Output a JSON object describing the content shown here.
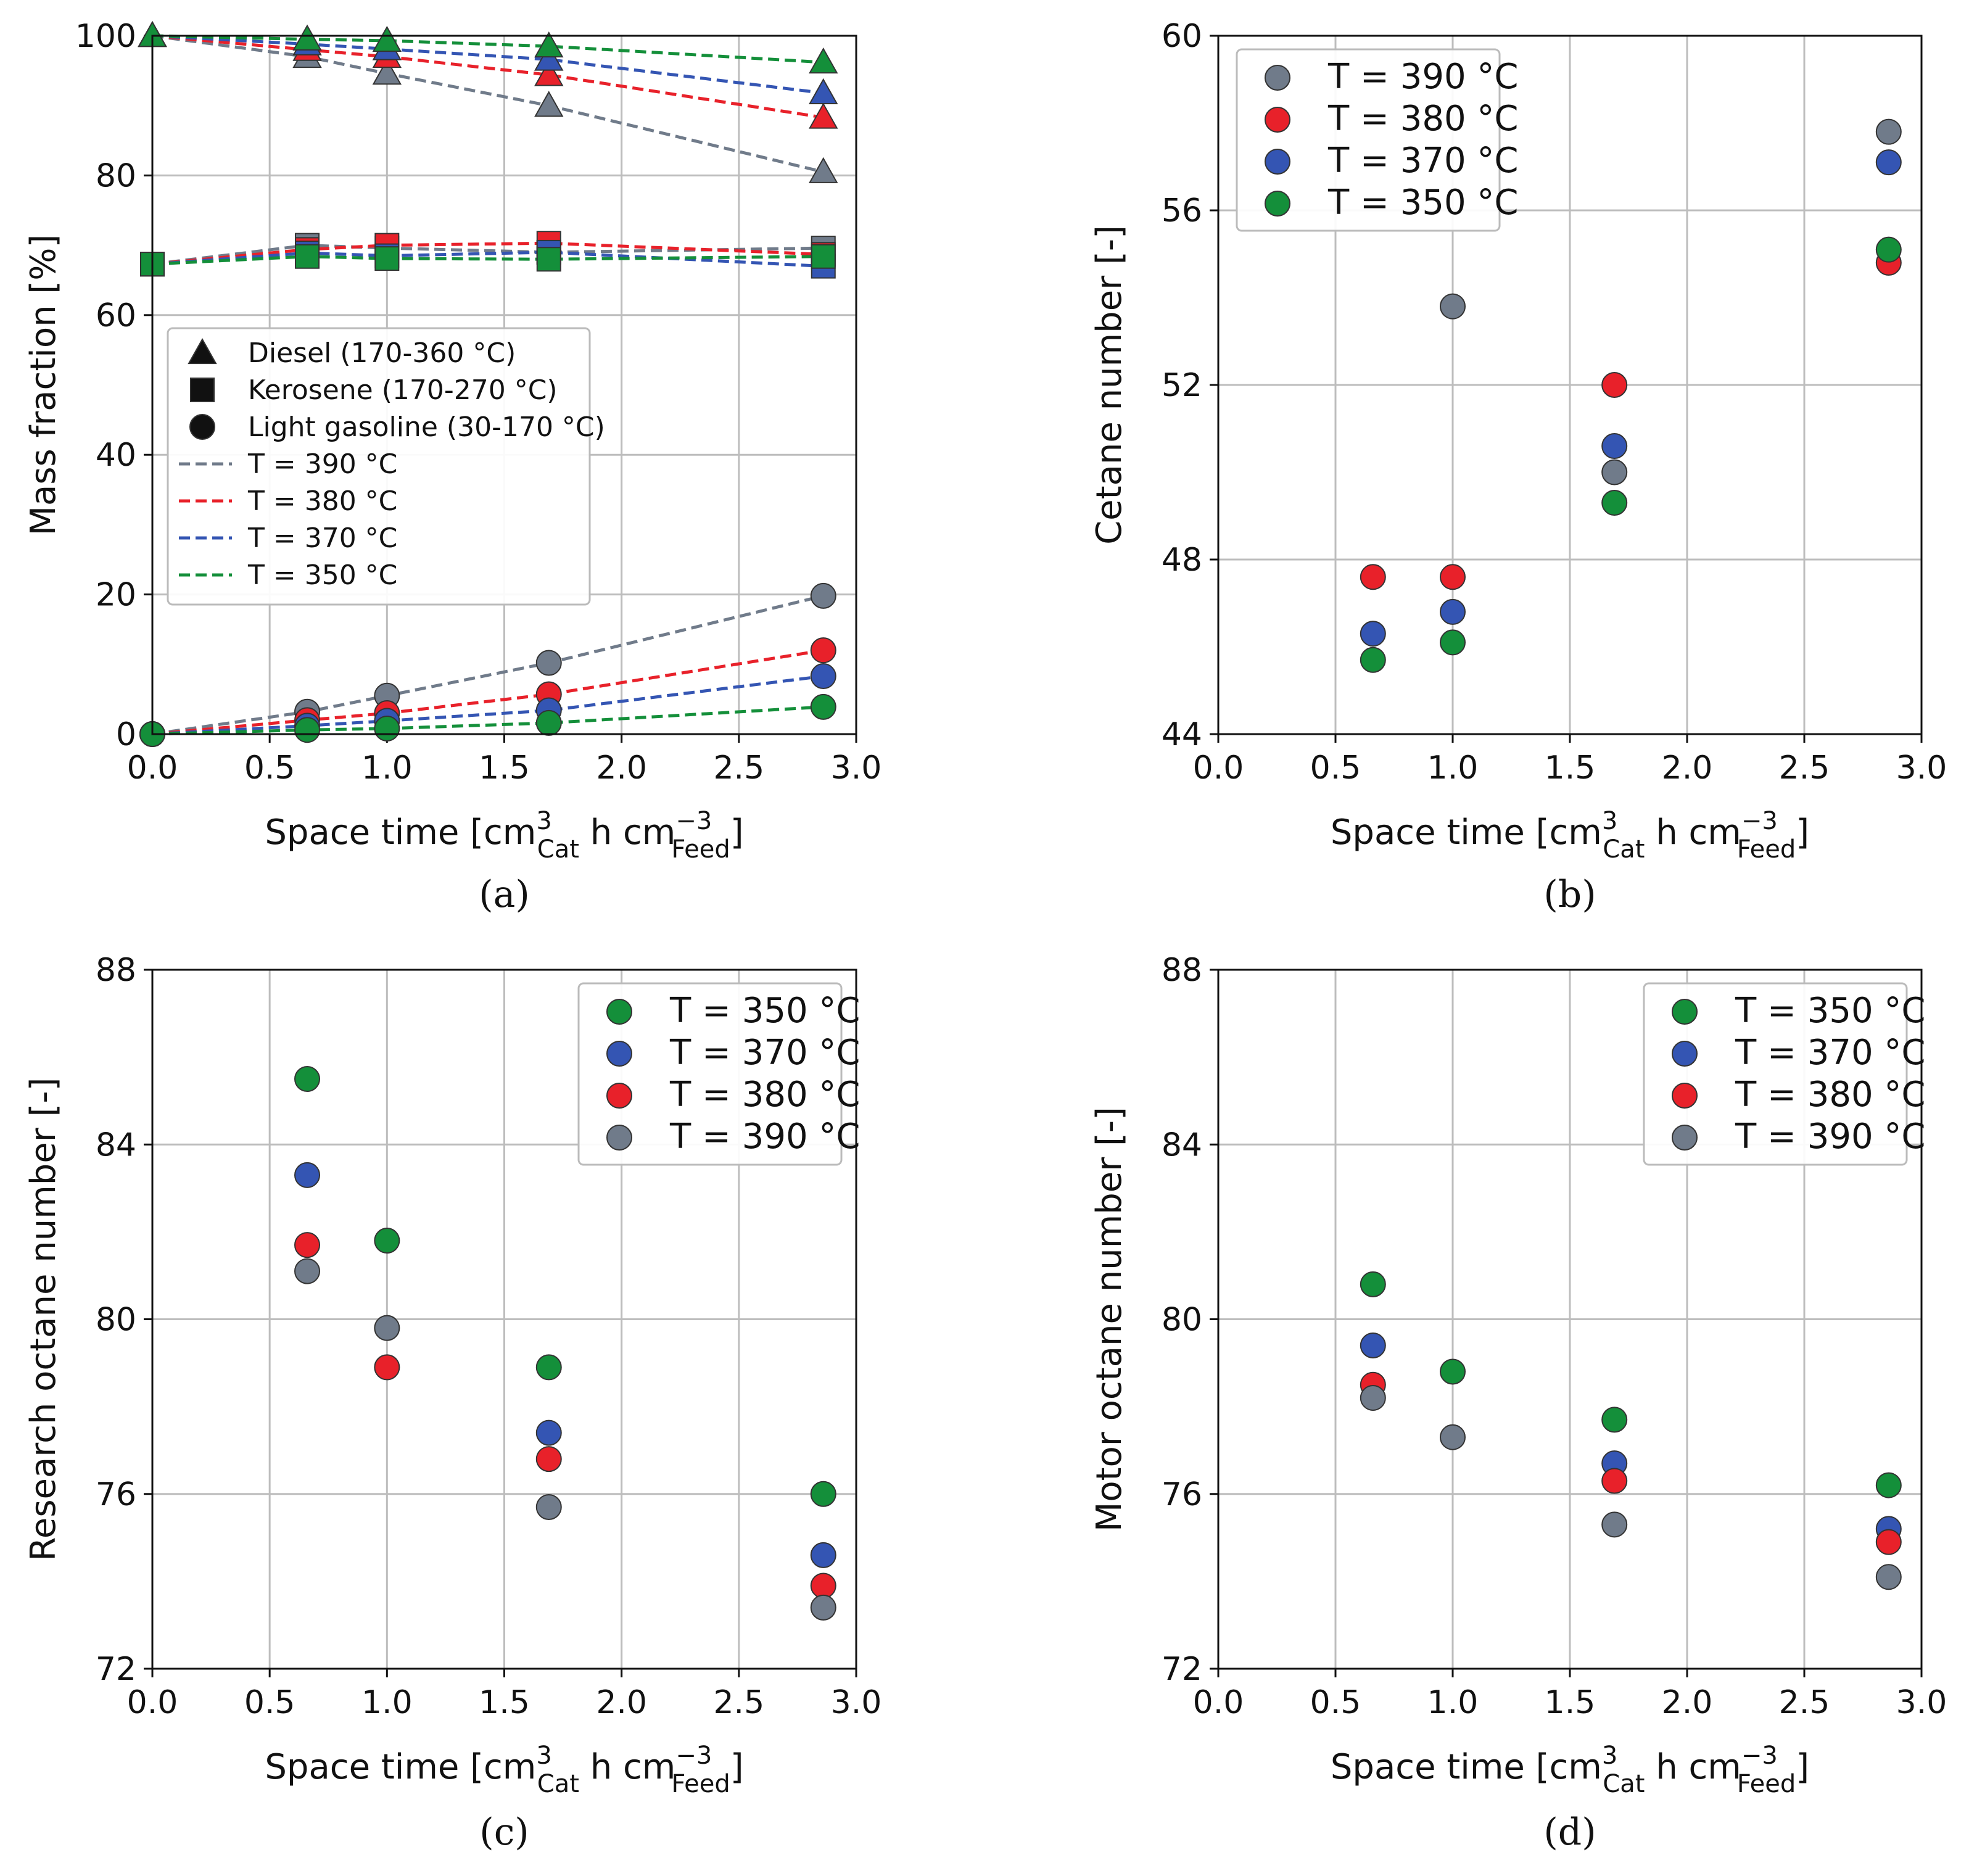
{
  "colors": {
    "T390": "#707b8a",
    "T380": "#e8212a",
    "T370": "#3455b3",
    "T350": "#148f3a",
    "grid": "#bdbdbd"
  },
  "chart_data": [
    {
      "panel": "a",
      "caption": "(a)",
      "type": "line",
      "xlabel": "Space time [cm",
      "x_sup1": "3",
      "x_sub1": "Cat",
      "x_mid": " h cm",
      "x_sup2": "−3",
      "x_sub2": "Feed",
      "x_end": "]",
      "ylabel": "Mass fraction [%]",
      "xlim": [
        0,
        3
      ],
      "ylim": [
        0,
        100
      ],
      "xticks": [
        "0.0",
        "0.5",
        "1.0",
        "1.5",
        "2.0",
        "2.5",
        "3.0"
      ],
      "yticks": [
        "0",
        "20",
        "40",
        "60",
        "80",
        "100"
      ],
      "grid": true,
      "legend_position": "center-left",
      "legend_markers": [
        {
          "marker": "triangle",
          "label": "Diesel (170-360 °C)"
        },
        {
          "marker": "square",
          "label": "Kerosene (170-270 °C)"
        },
        {
          "marker": "circle",
          "label": "Light gasoline (30-170 °C)"
        }
      ],
      "legend_lines": [
        {
          "color_key": "T390",
          "label": "T = 390 °C"
        },
        {
          "color_key": "T380",
          "label": "T = 380 °C"
        },
        {
          "color_key": "T370",
          "label": "T = 370 °C"
        },
        {
          "color_key": "T350",
          "label": "T = 350 °C"
        }
      ],
      "x": [
        0,
        0.66,
        1.0,
        1.69,
        2.86
      ],
      "series": [
        {
          "name": "Diesel T = 390 °C",
          "marker": "triangle",
          "color_key": "T390",
          "values": [
            100,
            97.0,
            94.6,
            90.0,
            80.5
          ]
        },
        {
          "name": "Diesel T = 380 °C",
          "marker": "triangle",
          "color_key": "T380",
          "values": [
            100,
            98.0,
            97.0,
            94.4,
            88.3
          ]
        },
        {
          "name": "Diesel T = 370 °C",
          "marker": "triangle",
          "color_key": "T370",
          "values": [
            100,
            98.8,
            98.1,
            96.6,
            91.8
          ]
        },
        {
          "name": "Diesel T = 350 °C",
          "marker": "triangle",
          "color_key": "T350",
          "values": [
            100,
            99.5,
            99.3,
            98.5,
            96.2
          ]
        },
        {
          "name": "Kerosene T = 390 °C",
          "marker": "square",
          "color_key": "T390",
          "values": [
            67.3,
            70.0,
            69.6,
            69.0,
            69.6
          ]
        },
        {
          "name": "Kerosene T = 380 °C",
          "marker": "square",
          "color_key": "T380",
          "values": [
            67.3,
            69.4,
            70.0,
            70.3,
            68.7
          ]
        },
        {
          "name": "Kerosene T = 370 °C",
          "marker": "square",
          "color_key": "T370",
          "values": [
            67.3,
            68.9,
            68.5,
            69.0,
            67.0
          ]
        },
        {
          "name": "Kerosene T = 350 °C",
          "marker": "square",
          "color_key": "T350",
          "values": [
            67.3,
            68.4,
            68.1,
            68.0,
            68.4
          ]
        },
        {
          "name": "Light gasoline T = 390 °C",
          "marker": "circle",
          "color_key": "T390",
          "values": [
            0,
            3.2,
            5.5,
            10.2,
            19.8
          ]
        },
        {
          "name": "Light gasoline T = 380 °C",
          "marker": "circle",
          "color_key": "T380",
          "values": [
            0,
            2.0,
            3.0,
            5.7,
            12.0
          ]
        },
        {
          "name": "Light gasoline T = 370 °C",
          "marker": "circle",
          "color_key": "T370",
          "values": [
            0,
            1.2,
            1.9,
            3.4,
            8.3
          ]
        },
        {
          "name": "Light gasoline T = 350 °C",
          "marker": "circle",
          "color_key": "T350",
          "values": [
            0,
            0.6,
            0.8,
            1.6,
            3.9
          ]
        }
      ]
    },
    {
      "panel": "b",
      "caption": "(b)",
      "type": "scatter",
      "xlabel": "Space time [cm",
      "x_sup1": "3",
      "x_sub1": "Cat",
      "x_mid": " h cm",
      "x_sup2": "−3",
      "x_sub2": "Feed",
      "x_end": "]",
      "ylabel": "Cetane number [-]",
      "xlim": [
        0,
        3
      ],
      "ylim": [
        44,
        60
      ],
      "xticks": [
        "0.0",
        "0.5",
        "1.0",
        "1.5",
        "2.0",
        "2.5",
        "3.0"
      ],
      "yticks": [
        "44",
        "48",
        "52",
        "56",
        "60"
      ],
      "grid": true,
      "legend_position": "top-left",
      "x": [
        0.66,
        1.0,
        1.69,
        2.86
      ],
      "series": [
        {
          "name": "T = 390 °C",
          "color_key": "T390",
          "values": [
            null,
            53.8,
            50.0,
            57.8
          ]
        },
        {
          "name": "T = 380 °C",
          "color_key": "T380",
          "values": [
            47.6,
            47.6,
            52.0,
            54.8
          ]
        },
        {
          "name": "T = 370 °C",
          "color_key": "T370",
          "values": [
            46.3,
            46.8,
            50.6,
            57.1
          ]
        },
        {
          "name": "T = 350 °C",
          "color_key": "T350",
          "values": [
            45.7,
            46.1,
            49.3,
            55.1
          ]
        }
      ]
    },
    {
      "panel": "c",
      "caption": "(c)",
      "type": "scatter",
      "xlabel": "Space time [cm",
      "x_sup1": "3",
      "x_sub1": "Cat",
      "x_mid": " h cm",
      "x_sup2": "−3",
      "x_sub2": "Feed",
      "x_end": "]",
      "ylabel": "Research octane number [-]",
      "xlim": [
        0,
        3
      ],
      "ylim": [
        72,
        88
      ],
      "xticks": [
        "0.0",
        "0.5",
        "1.0",
        "1.5",
        "2.0",
        "2.5",
        "3.0"
      ],
      "yticks": [
        "72",
        "76",
        "80",
        "84",
        "88"
      ],
      "grid": true,
      "legend_position": "top-right",
      "x": [
        0.66,
        1.0,
        1.69,
        2.86
      ],
      "series": [
        {
          "name": "T = 350 °C",
          "color_key": "T350",
          "values": [
            85.5,
            81.8,
            78.9,
            76.0
          ]
        },
        {
          "name": "T = 370 °C",
          "color_key": "T370",
          "values": [
            83.3,
            null,
            77.4,
            74.6
          ]
        },
        {
          "name": "T = 380 °C",
          "color_key": "T380",
          "values": [
            81.7,
            78.9,
            76.8,
            73.9
          ]
        },
        {
          "name": "T = 390 °C",
          "color_key": "T390",
          "values": [
            81.1,
            79.8,
            75.7,
            73.4
          ]
        }
      ]
    },
    {
      "panel": "d",
      "caption": "(d)",
      "type": "scatter",
      "xlabel": "Space time [cm",
      "x_sup1": "3",
      "x_sub1": "Cat",
      "x_mid": " h cm",
      "x_sup2": "−3",
      "x_sub2": "Feed",
      "x_end": "]",
      "ylabel": "Motor octane number [-]",
      "xlim": [
        0,
        3
      ],
      "ylim": [
        72,
        88
      ],
      "xticks": [
        "0.0",
        "0.5",
        "1.0",
        "1.5",
        "2.0",
        "2.5",
        "3.0"
      ],
      "yticks": [
        "72",
        "76",
        "80",
        "84",
        "88"
      ],
      "grid": true,
      "legend_position": "top-right",
      "x": [
        0.66,
        1.0,
        1.69,
        2.86
      ],
      "series": [
        {
          "name": "T = 350 °C",
          "color_key": "T350",
          "values": [
            80.8,
            78.8,
            77.7,
            76.2
          ]
        },
        {
          "name": "T = 370 °C",
          "color_key": "T370",
          "values": [
            79.4,
            null,
            76.7,
            75.2
          ]
        },
        {
          "name": "T = 380 °C",
          "color_key": "T380",
          "values": [
            78.5,
            null,
            76.3,
            74.9
          ]
        },
        {
          "name": "T = 390 °C",
          "color_key": "T390",
          "values": [
            78.2,
            77.3,
            75.3,
            74.1
          ]
        }
      ]
    }
  ]
}
